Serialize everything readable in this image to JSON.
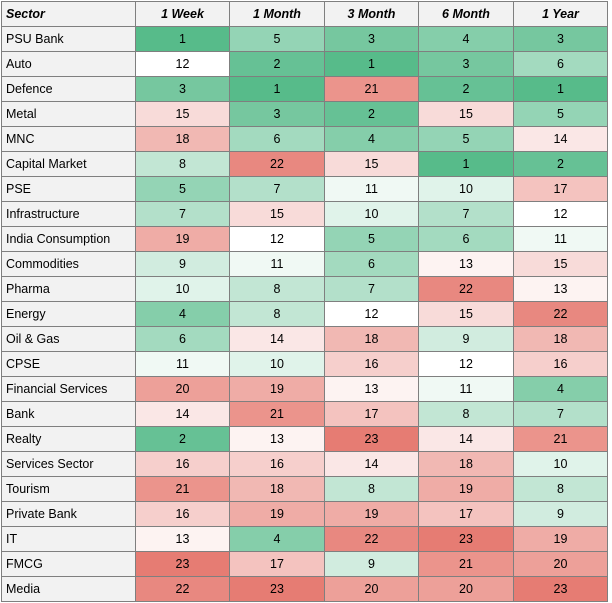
{
  "table": {
    "headers": [
      "Sector",
      "1 Week",
      "1 Month",
      "3 Month",
      "6 Month",
      "1 Year"
    ],
    "rows": [
      {
        "sector": "PSU Bank",
        "values": [
          1,
          5,
          3,
          4,
          3
        ]
      },
      {
        "sector": "Auto",
        "values": [
          12,
          2,
          1,
          3,
          6
        ]
      },
      {
        "sector": "Defence",
        "values": [
          3,
          1,
          21,
          2,
          1
        ]
      },
      {
        "sector": "Metal",
        "values": [
          15,
          3,
          2,
          15,
          5
        ]
      },
      {
        "sector": "MNC",
        "values": [
          18,
          6,
          4,
          5,
          14
        ]
      },
      {
        "sector": "Capital Market",
        "values": [
          8,
          22,
          15,
          1,
          2
        ]
      },
      {
        "sector": "PSE",
        "values": [
          5,
          7,
          11,
          10,
          17
        ]
      },
      {
        "sector": "Infrastructure",
        "values": [
          7,
          15,
          10,
          7,
          12
        ]
      },
      {
        "sector": "India Consumption",
        "values": [
          19,
          12,
          5,
          6,
          11
        ]
      },
      {
        "sector": "Commodities",
        "values": [
          9,
          11,
          6,
          13,
          15
        ]
      },
      {
        "sector": "Pharma",
        "values": [
          10,
          8,
          7,
          22,
          13
        ]
      },
      {
        "sector": "Energy",
        "values": [
          4,
          8,
          12,
          15,
          22
        ]
      },
      {
        "sector": "Oil & Gas",
        "values": [
          6,
          14,
          18,
          9,
          18
        ]
      },
      {
        "sector": "CPSE",
        "values": [
          11,
          10,
          16,
          12,
          16
        ]
      },
      {
        "sector": "Financial Services",
        "values": [
          20,
          19,
          13,
          11,
          4
        ]
      },
      {
        "sector": "Bank",
        "values": [
          14,
          21,
          17,
          8,
          7
        ]
      },
      {
        "sector": "Realty",
        "values": [
          2,
          13,
          23,
          14,
          21
        ]
      },
      {
        "sector": "Services Sector",
        "values": [
          16,
          16,
          14,
          18,
          10
        ]
      },
      {
        "sector": "Tourism",
        "values": [
          21,
          18,
          8,
          19,
          8
        ]
      },
      {
        "sector": "Private Bank",
        "values": [
          16,
          19,
          19,
          17,
          9
        ]
      },
      {
        "sector": "IT",
        "values": [
          13,
          4,
          22,
          23,
          19
        ]
      },
      {
        "sector": "FMCG",
        "values": [
          23,
          17,
          9,
          21,
          20
        ]
      },
      {
        "sector": "Media",
        "values": [
          22,
          23,
          20,
          20,
          23
        ]
      }
    ]
  },
  "colors": {
    "best": "#57bb8a",
    "mid": "#ffffff",
    "worst": "#e67c73",
    "label_bg": "#f2f2f2",
    "border": "#7f7f7f"
  },
  "scale": {
    "min": 1,
    "mid": 12,
    "max": 23
  }
}
